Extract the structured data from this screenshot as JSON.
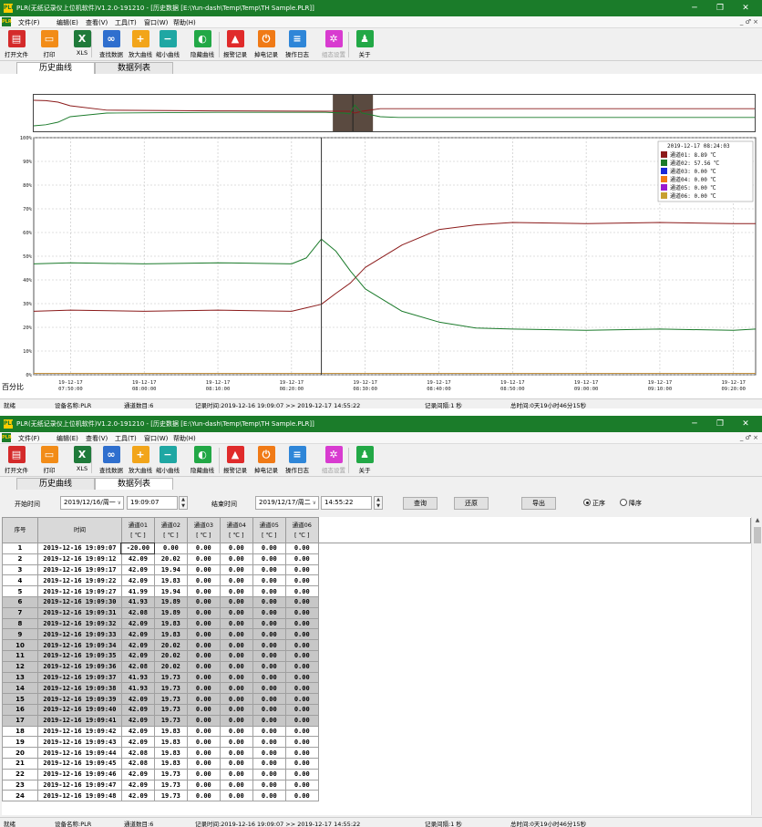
{
  "window_title": "PLR(无纸记录仪上位机软件)V1.2.0-191210 - [历史数据 [E:\\Yun-dash\\Temp\\Temp\\TH Sample.PLR]]",
  "app_icon_text": "PLR",
  "window_controls": {
    "minimize": "─",
    "restore": "❐",
    "close": "✕"
  },
  "mdi_controls": "_ ♂ ×",
  "menu": [
    "文件(F)",
    "编辑(E)",
    "查看(V)",
    "工具(T)",
    "窗口(W)",
    "帮助(H)"
  ],
  "toolbar": [
    {
      "label": "打开文件",
      "icon": "open-file-icon",
      "color": "#d42a2a",
      "glyph": "▤"
    },
    {
      "label": "打印",
      "icon": "print-icon",
      "color": "#f28c18",
      "glyph": "▭"
    },
    {
      "label": "XLS",
      "icon": "excel-icon",
      "color": "#1f7a3a",
      "glyph": "X"
    },
    {
      "label": "查找数据",
      "icon": "binoculars-icon",
      "color": "#2f6fce",
      "glyph": "∞"
    },
    {
      "label": "放大曲线",
      "icon": "zoom-in-icon",
      "color": "#f2a51a",
      "glyph": "+"
    },
    {
      "label": "缩小曲线",
      "icon": "zoom-out-icon",
      "color": "#1fa7a3",
      "glyph": "−"
    },
    {
      "label": "隐藏曲线",
      "icon": "hide-curve-icon",
      "color": "#22a846",
      "glyph": "◐"
    },
    {
      "label": "报警记录",
      "icon": "alarm-bell-icon",
      "color": "#e02b2b",
      "glyph": "▲"
    },
    {
      "label": "掉电记录",
      "icon": "power-icon",
      "color": "#f07a16",
      "glyph": "⏻"
    },
    {
      "label": "操作日志",
      "icon": "log-icon",
      "color": "#2f86d8",
      "glyph": "≡"
    },
    {
      "label": "组态设置",
      "icon": "settings-gear-icon",
      "color": "#d83bd0",
      "glyph": "✲",
      "disabled": true
    },
    {
      "label": "关于",
      "icon": "about-person-icon",
      "color": "#22a846",
      "glyph": "♟"
    }
  ],
  "tabs": [
    "历史曲线",
    "数据列表"
  ],
  "status": {
    "ready": "就绪",
    "device": "设备名称:PLR",
    "channels": "通道数目:6",
    "record_time": "记录时间:2019-12-16 19:09:07 >> 2019-12-17 14:55:22",
    "interval": "记录间隔:1 秒",
    "total": "总时间:0天19小时46分15秒"
  },
  "chart": {
    "type": "line",
    "ylabel": "百分比",
    "y_ticks": [
      "100%",
      "90%",
      "80%",
      "70%",
      "60%",
      "50%",
      "40%",
      "30%",
      "20%",
      "10%",
      "0%"
    ],
    "x_ticks": [
      {
        "date": "19-12-17",
        "time": "07:50:00"
      },
      {
        "date": "19-12-17",
        "time": "08:00:00"
      },
      {
        "date": "19-12-17",
        "time": "08:10:00"
      },
      {
        "date": "19-12-17",
        "time": "08:20:00"
      },
      {
        "date": "19-12-17",
        "time": "08:30:00"
      },
      {
        "date": "19-12-17",
        "time": "08:40:00"
      },
      {
        "date": "19-12-17",
        "time": "08:50:00"
      },
      {
        "date": "19-12-17",
        "time": "09:00:00"
      },
      {
        "date": "19-12-17",
        "time": "09:10:00"
      },
      {
        "date": "19-12-17",
        "time": "09:20:00"
      }
    ],
    "cursor_time": "2019-12-17 08:24:03",
    "legend": [
      {
        "label": "通道01: 8.89 ℃",
        "color": "#8b1a1a"
      },
      {
        "label": "通道02: 57.56 ℃",
        "color": "#1a7a2a"
      },
      {
        "label": "通道03: 0.00 ℃",
        "color": "#1a2ad8"
      },
      {
        "label": "通道04: 0.00 ℃",
        "color": "#f07a16"
      },
      {
        "label": "通道05: 0.00 ℃",
        "color": "#9a1ad0"
      },
      {
        "label": "通道06: 0.00 ℃",
        "color": "#c8a030"
      }
    ]
  },
  "chart_data": {
    "type": "line",
    "ylabel": "百分比",
    "y_unit": "%",
    "ylim": [
      0,
      100
    ],
    "x": [
      "07:45:00",
      "07:50:00",
      "08:00:00",
      "08:10:00",
      "08:20:00",
      "08:22:00",
      "08:24:03",
      "08:26:00",
      "08:28:00",
      "08:30:00",
      "08:35:00",
      "08:40:00",
      "08:45:00",
      "08:50:00",
      "09:00:00",
      "09:10:00",
      "09:20:00",
      "09:23:00"
    ],
    "series": [
      {
        "name": "通道01",
        "values": [
          27,
          27,
          27,
          27,
          27,
          28,
          30,
          34,
          39,
          45,
          55,
          61,
          63.5,
          64,
          64,
          64,
          64,
          63.5
        ]
      },
      {
        "name": "通道02",
        "values": [
          47,
          47,
          47,
          47,
          47,
          49,
          57.5,
          52,
          44,
          36,
          27,
          22,
          20,
          19,
          19,
          19,
          19,
          19
        ]
      }
    ],
    "grid": true,
    "legend_position": "top-right"
  },
  "overview": {
    "x_minutes": [
      0,
      20,
      40,
      60,
      120,
      300,
      480,
      510,
      520,
      528,
      540,
      570,
      600,
      900,
      1186
    ],
    "ch01": [
      85,
      84,
      80,
      70,
      58,
      56,
      55,
      55,
      55,
      50,
      55,
      62,
      62,
      62,
      62
    ],
    "ch02": [
      15,
      18,
      25,
      40,
      50,
      52,
      52,
      50,
      48,
      72,
      50,
      40,
      38,
      38,
      38
    ],
    "window_range_minutes": [
      492,
      558
    ]
  },
  "filter": {
    "start_label": "开始时间",
    "start_date": "2019/12/16/周一",
    "start_time": "19:09:07",
    "end_label": "结束时间",
    "end_date": "2019/12/17/周二",
    "end_time": "14:55:22",
    "query": "查询",
    "restore": "还原",
    "export": "导出",
    "asc": "正序",
    "desc": "降序"
  },
  "table": {
    "headers": [
      {
        "name": "序号",
        "unit": ""
      },
      {
        "name": "时间",
        "unit": ""
      },
      {
        "name": "通道01",
        "unit": "[ ℃ ]"
      },
      {
        "name": "通道02",
        "unit": "[ ℃ ]"
      },
      {
        "name": "通道03",
        "unit": "[ ℃ ]"
      },
      {
        "name": "通道04",
        "unit": "[ ℃ ]"
      },
      {
        "name": "通道05",
        "unit": "[ ℃ ]"
      },
      {
        "name": "通道06",
        "unit": "[ ℃ ]"
      }
    ],
    "rows": [
      [
        "1",
        "2019-12-16 19:09:07",
        "-20.00",
        "0.00",
        "0.00",
        "0.00",
        "0.00",
        "0.00"
      ],
      [
        "2",
        "2019-12-16 19:09:12",
        "42.09",
        "20.02",
        "0.00",
        "0.00",
        "0.00",
        "0.00"
      ],
      [
        "3",
        "2019-12-16 19:09:17",
        "42.09",
        "19.94",
        "0.00",
        "0.00",
        "0.00",
        "0.00"
      ],
      [
        "4",
        "2019-12-16 19:09:22",
        "42.09",
        "19.83",
        "0.00",
        "0.00",
        "0.00",
        "0.00"
      ],
      [
        "5",
        "2019-12-16 19:09:27",
        "41.99",
        "19.94",
        "0.00",
        "0.00",
        "0.00",
        "0.00"
      ],
      [
        "6",
        "2019-12-16 19:09:30",
        "41.93",
        "19.89",
        "0.00",
        "0.00",
        "0.00",
        "0.00"
      ],
      [
        "7",
        "2019-12-16 19:09:31",
        "42.08",
        "19.89",
        "0.00",
        "0.00",
        "0.00",
        "0.00"
      ],
      [
        "8",
        "2019-12-16 19:09:32",
        "42.09",
        "19.83",
        "0.00",
        "0.00",
        "0.00",
        "0.00"
      ],
      [
        "9",
        "2019-12-16 19:09:33",
        "42.09",
        "19.83",
        "0.00",
        "0.00",
        "0.00",
        "0.00"
      ],
      [
        "10",
        "2019-12-16 19:09:34",
        "42.09",
        "20.02",
        "0.00",
        "0.00",
        "0.00",
        "0.00"
      ],
      [
        "11",
        "2019-12-16 19:09:35",
        "42.09",
        "20.02",
        "0.00",
        "0.00",
        "0.00",
        "0.00"
      ],
      [
        "12",
        "2019-12-16 19:09:36",
        "42.08",
        "20.02",
        "0.00",
        "0.00",
        "0.00",
        "0.00"
      ],
      [
        "13",
        "2019-12-16 19:09:37",
        "41.93",
        "19.73",
        "0.00",
        "0.00",
        "0.00",
        "0.00"
      ],
      [
        "14",
        "2019-12-16 19:09:38",
        "41.93",
        "19.73",
        "0.00",
        "0.00",
        "0.00",
        "0.00"
      ],
      [
        "15",
        "2019-12-16 19:09:39",
        "42.09",
        "19.73",
        "0.00",
        "0.00",
        "0.00",
        "0.00"
      ],
      [
        "16",
        "2019-12-16 19:09:40",
        "42.09",
        "19.73",
        "0.00",
        "0.00",
        "0.00",
        "0.00"
      ],
      [
        "17",
        "2019-12-16 19:09:41",
        "42.09",
        "19.73",
        "0.00",
        "0.00",
        "0.00",
        "0.00"
      ],
      [
        "18",
        "2019-12-16 19:09:42",
        "42.09",
        "19.83",
        "0.00",
        "0.00",
        "0.00",
        "0.00"
      ],
      [
        "19",
        "2019-12-16 19:09:43",
        "42.09",
        "19.83",
        "0.00",
        "0.00",
        "0.00",
        "0.00"
      ],
      [
        "20",
        "2019-12-16 19:09:44",
        "42.08",
        "19.83",
        "0.00",
        "0.00",
        "0.00",
        "0.00"
      ],
      [
        "21",
        "2019-12-16 19:09:45",
        "42.08",
        "19.83",
        "0.00",
        "0.00",
        "0.00",
        "0.00"
      ],
      [
        "22",
        "2019-12-16 19:09:46",
        "42.09",
        "19.73",
        "0.00",
        "0.00",
        "0.00",
        "0.00"
      ],
      [
        "23",
        "2019-12-16 19:09:47",
        "42.09",
        "19.73",
        "0.00",
        "0.00",
        "0.00",
        "0.00"
      ],
      [
        "24",
        "2019-12-16 19:09:48",
        "42.09",
        "19.73",
        "0.00",
        "0.00",
        "0.00",
        "0.00"
      ]
    ],
    "selected_rows": [
      6,
      7,
      8,
      9,
      10,
      11,
      12,
      13,
      14,
      15,
      16,
      17
    ]
  }
}
